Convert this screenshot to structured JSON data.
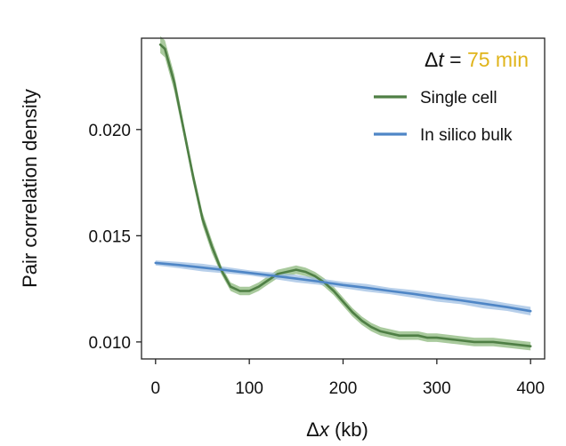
{
  "chart_data": {
    "type": "line",
    "title": "",
    "xlabel_prefix": "Δ",
    "xlabel_var": "x",
    "xlabel_suffix": " (kb)",
    "ylabel": "Pair correlation density",
    "xlim": [
      -15,
      415
    ],
    "ylim": [
      0.0092,
      0.0243
    ],
    "xticks": [
      0,
      100,
      200,
      300,
      400
    ],
    "xtick_labels": [
      "0",
      "100",
      "200",
      "300",
      "400"
    ],
    "yticks": [
      0.01,
      0.015,
      0.02
    ],
    "ytick_labels": [
      "0.010",
      "0.015",
      "0.020"
    ],
    "grid": false,
    "legend_position": "top-right",
    "annotation": {
      "prefix": "Δ",
      "var": "t",
      "equals": " = ",
      "value": "75 min",
      "value_color": "#e0b41a"
    },
    "series": [
      {
        "name": "Single cell",
        "color": "#4f7f45",
        "band_color": "#8cb87c",
        "x": [
          5,
          10,
          20,
          30,
          40,
          50,
          60,
          70,
          80,
          90,
          100,
          110,
          120,
          130,
          140,
          150,
          160,
          170,
          180,
          190,
          200,
          210,
          220,
          230,
          240,
          250,
          260,
          270,
          280,
          290,
          300,
          320,
          340,
          360,
          380,
          400
        ],
        "y": [
          0.024,
          0.0238,
          0.0222,
          0.02,
          0.0178,
          0.0158,
          0.0145,
          0.0134,
          0.0126,
          0.0124,
          0.0124,
          0.0126,
          0.0129,
          0.0132,
          0.0133,
          0.0134,
          0.0133,
          0.0131,
          0.0128,
          0.0124,
          0.0119,
          0.0114,
          0.011,
          0.0107,
          0.0105,
          0.0104,
          0.0103,
          0.0103,
          0.0103,
          0.0102,
          0.0102,
          0.0101,
          0.01,
          0.01,
          0.0099,
          0.0098
        ],
        "band_halfwidth": [
          0.0004,
          0.0004,
          0.0004,
          0.0003,
          0.0003,
          0.0003,
          0.0003,
          0.0002,
          0.0002,
          0.0002,
          0.0002,
          0.0002,
          0.0002,
          0.0002,
          0.0002,
          0.0002,
          0.0002,
          0.0002,
          0.0002,
          0.0002,
          0.0002,
          0.0002,
          0.0002,
          0.0002,
          0.0002,
          0.0002,
          0.0002,
          0.0002,
          0.0002,
          0.0002,
          0.0002,
          0.0002,
          0.0002,
          0.0002,
          0.0002,
          0.0002
        ]
      },
      {
        "name": "In silico bulk",
        "color": "#4f86c6",
        "band_color": "#9fbfe3",
        "x": [
          0,
          25,
          50,
          75,
          100,
          125,
          150,
          175,
          200,
          225,
          250,
          275,
          300,
          325,
          350,
          375,
          400
        ],
        "y": [
          0.01372,
          0.01362,
          0.0135,
          0.01338,
          0.01325,
          0.01312,
          0.01298,
          0.01284,
          0.01268,
          0.01255,
          0.0124,
          0.01226,
          0.0121,
          0.01196,
          0.0118,
          0.01164,
          0.01145
        ],
        "band_halfwidth": [
          0.00012,
          0.00015,
          0.00018,
          0.00015,
          0.00012,
          0.00015,
          0.00018,
          0.00015,
          0.00015,
          0.00018,
          0.00015,
          0.00018,
          0.0002,
          0.00018,
          0.00022,
          0.00018,
          0.0002
        ]
      }
    ]
  }
}
